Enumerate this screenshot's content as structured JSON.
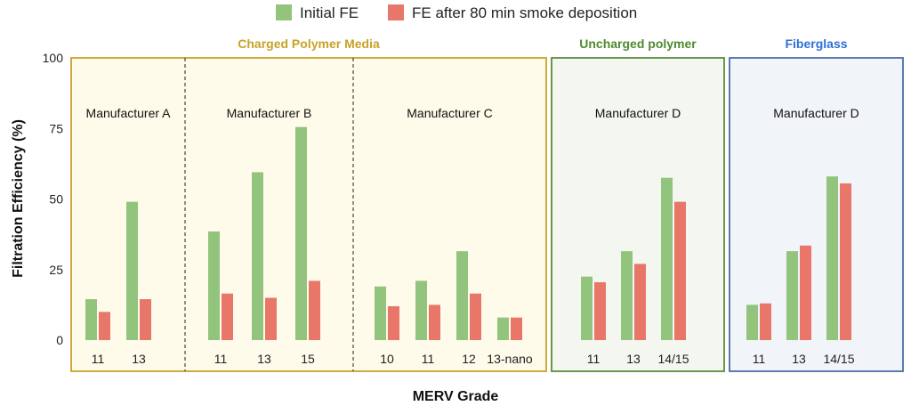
{
  "chart_data": {
    "type": "bar",
    "xlabel": "MERV Grade",
    "ylabel": "Filtration Efficiency (%)",
    "ylim": [
      0,
      100
    ],
    "yticks": [
      0,
      25,
      50,
      75,
      100
    ],
    "legend": {
      "position": "top-center",
      "entries": [
        {
          "label": "Initial FE",
          "color": "#93c47d"
        },
        {
          "label": "FE after 80 min smoke deposition",
          "color": "#e8776a"
        }
      ]
    },
    "groups": [
      {
        "title": "Charged Polymer Media",
        "title_color": "#c9a227",
        "border_color": "#c9a227",
        "fill_color": "#fffbea",
        "manufacturers": [
          {
            "name": "Manufacturer A",
            "categories": [
              "11",
              "13"
            ],
            "initial": [
              14.5,
              49
            ],
            "after": [
              10,
              14.5
            ]
          },
          {
            "name": "Manufacturer B",
            "categories": [
              "11",
              "13",
              "15"
            ],
            "initial": [
              38.5,
              59.5,
              75.5
            ],
            "after": [
              16.5,
              15,
              21
            ]
          },
          {
            "name": "Manufacturer C",
            "categories": [
              "10",
              "11",
              "12",
              "13-nano"
            ],
            "initial": [
              19,
              21,
              31.5,
              8
            ],
            "after": [
              12,
              12.5,
              16.5,
              8
            ]
          }
        ]
      },
      {
        "title": "Uncharged polymer",
        "title_color": "#4f8a2e",
        "border_color": "#5a8c3a",
        "fill_color": "#f4f7f0",
        "manufacturers": [
          {
            "name": "Manufacturer D",
            "categories": [
              "11",
              "13",
              "14/15"
            ],
            "initial": [
              22.5,
              31.5,
              57.5
            ],
            "after": [
              20.5,
              27,
              49
            ]
          }
        ]
      },
      {
        "title": "Fiberglass",
        "title_color": "#2f6fd6",
        "border_color": "#4a6fa5",
        "fill_color": "#f1f4f9",
        "manufacturers": [
          {
            "name": "Manufacturer D",
            "categories": [
              "11",
              "13",
              "14/15"
            ],
            "initial": [
              12.5,
              31.5,
              58
            ],
            "after": [
              13,
              33.5,
              55.5
            ]
          }
        ]
      }
    ]
  }
}
